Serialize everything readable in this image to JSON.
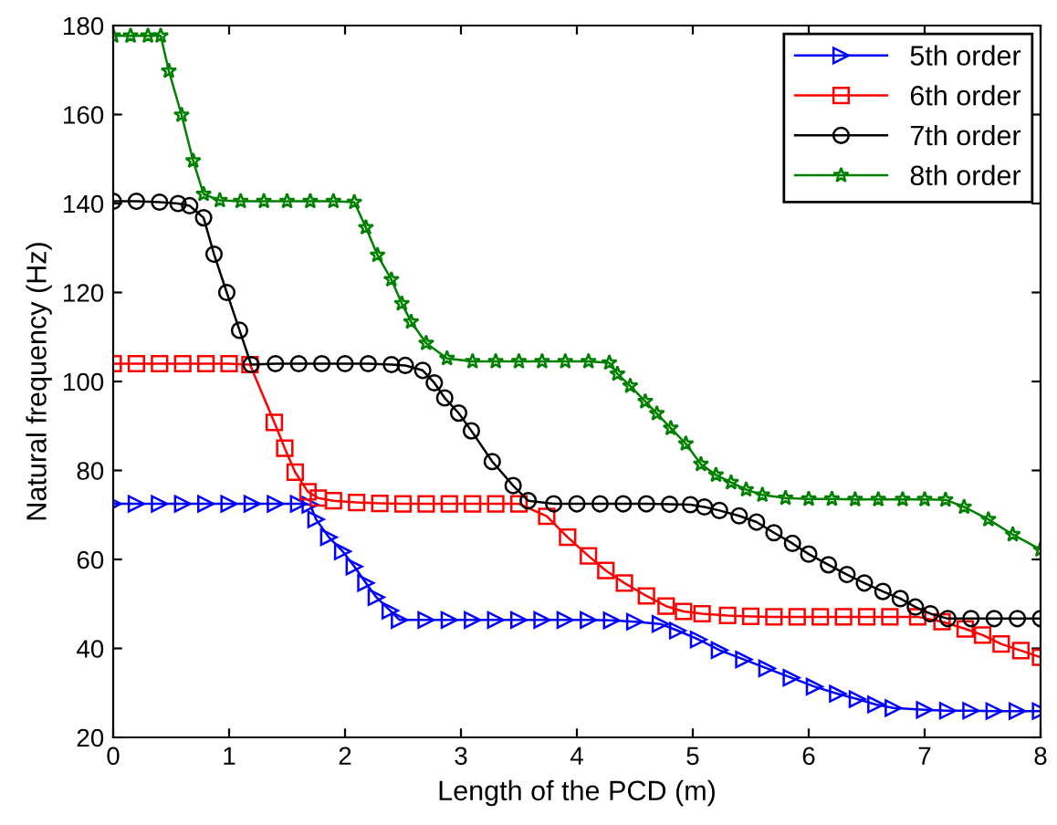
{
  "chart_data": {
    "type": "line",
    "xlabel": "Length of the PCD (m)",
    "ylabel": "Natural frequency (Hz)",
    "xlim": [
      0,
      8
    ],
    "xticks": [
      0,
      1,
      2,
      3,
      4,
      5,
      6,
      7,
      8
    ],
    "ylim": [
      20,
      180
    ],
    "yticks": [
      20,
      40,
      60,
      80,
      100,
      120,
      140,
      160,
      180
    ],
    "grid": false,
    "legend": "top right",
    "line_style": "solid",
    "series": [
      {
        "name": "5th order",
        "color": "#0000ff",
        "marker": "triangle",
        "x": [
          0,
          0.2,
          0.4,
          0.6,
          0.8,
          1.0,
          1.2,
          1.4,
          1.6,
          1.7,
          1.75,
          1.86,
          1.98,
          2.08,
          2.18,
          2.27,
          2.39,
          2.47,
          2.7,
          2.9,
          3.1,
          3.3,
          3.5,
          3.7,
          3.9,
          4.1,
          4.3,
          4.5,
          4.72,
          4.87,
          5.05,
          5.23,
          5.44,
          5.64,
          5.85,
          6.05,
          6.25,
          6.42,
          6.58,
          6.73,
          7.0,
          7.2,
          7.4,
          7.6,
          7.8,
          8.0
        ],
        "values": [
          72.5,
          72.5,
          72.5,
          72.5,
          72.5,
          72.5,
          72.5,
          72.5,
          72.5,
          72.3,
          69,
          65,
          61.8,
          58.4,
          54.7,
          51.5,
          48.5,
          46.4,
          46.4,
          46.4,
          46.4,
          46.4,
          46.4,
          46.4,
          46.4,
          46.4,
          46.3,
          46,
          45.5,
          44,
          42,
          39.6,
          37.5,
          35.5,
          33.4,
          31.4,
          29.8,
          28.6,
          27.4,
          26.6,
          26.2,
          26,
          26,
          25.9,
          25.9,
          25.9
        ]
      },
      {
        "name": "6th order",
        "color": "#ff0000",
        "marker": "square",
        "x": [
          0,
          0.2,
          0.4,
          0.6,
          0.8,
          1.0,
          1.18,
          1.39,
          1.48,
          1.57,
          1.68,
          1.77,
          1.9,
          2.1,
          2.3,
          2.5,
          2.7,
          2.9,
          3.1,
          3.3,
          3.5,
          3.74,
          3.92,
          4.1,
          4.25,
          4.41,
          4.6,
          4.77,
          4.92,
          5.08,
          5.3,
          5.5,
          5.7,
          5.9,
          6.1,
          6.3,
          6.5,
          6.7,
          6.94,
          7.15,
          7.35,
          7.5,
          7.66,
          7.83,
          8.0
        ],
        "values": [
          104,
          104,
          104,
          104,
          104,
          104,
          103.8,
          90.8,
          85,
          79.6,
          75.2,
          73.8,
          73.2,
          72.8,
          72.6,
          72.5,
          72.5,
          72.5,
          72.5,
          72.5,
          72.5,
          69.7,
          65,
          60.8,
          57.5,
          54.7,
          51.8,
          49.5,
          48.3,
          47.8,
          47.4,
          47.2,
          47.1,
          47.1,
          47.1,
          47.1,
          47.1,
          47.1,
          47.1,
          46,
          44.4,
          43,
          41,
          39.5,
          38
        ]
      },
      {
        "name": "7th order",
        "color": "#000000",
        "marker": "circle",
        "x": [
          0,
          0.2,
          0.4,
          0.56,
          0.66,
          0.78,
          0.87,
          0.98,
          1.09,
          1.19,
          1.4,
          1.6,
          1.8,
          2.0,
          2.2,
          2.4,
          2.52,
          2.67,
          2.77,
          2.86,
          2.98,
          3.09,
          3.27,
          3.45,
          3.58,
          3.8,
          4.0,
          4.2,
          4.4,
          4.6,
          4.8,
          4.98,
          5.1,
          5.23,
          5.4,
          5.55,
          5.7,
          5.86,
          6.0,
          6.17,
          6.33,
          6.48,
          6.64,
          6.79,
          6.92,
          7.05,
          7.2,
          7.4,
          7.6,
          7.8,
          8.0
        ],
        "values": [
          140.5,
          140.5,
          140.3,
          140,
          139.5,
          136.8,
          128.6,
          120,
          111.5,
          103.8,
          104,
          104,
          104,
          104,
          104,
          103.8,
          103.6,
          102.5,
          99.7,
          96.3,
          92.9,
          88.9,
          82,
          76.6,
          73.2,
          72.5,
          72.5,
          72.5,
          72.5,
          72.5,
          72.4,
          72.3,
          71.8,
          71,
          69.8,
          68.4,
          66,
          63.6,
          61.2,
          58.8,
          56.6,
          54.7,
          52.8,
          51.2,
          49.3,
          47.8,
          46.7,
          46.7,
          46.7,
          46.7,
          46.7
        ]
      },
      {
        "name": "8th order",
        "color": "#008000",
        "marker": "star",
        "x": [
          0,
          0.15,
          0.3,
          0.41,
          0.48,
          0.59,
          0.69,
          0.78,
          0.92,
          1.1,
          1.3,
          1.5,
          1.7,
          1.9,
          2.08,
          2.18,
          2.28,
          2.4,
          2.49,
          2.57,
          2.7,
          2.88,
          3.1,
          3.3,
          3.5,
          3.7,
          3.9,
          4.1,
          4.28,
          4.35,
          4.46,
          4.59,
          4.69,
          4.81,
          4.94,
          5.07,
          5.2,
          5.33,
          5.46,
          5.6,
          5.8,
          6.0,
          6.2,
          6.4,
          6.6,
          6.81,
          7.0,
          7.18,
          7.34,
          7.55,
          7.76,
          8.0
        ],
        "values": [
          177.7,
          177.7,
          177.7,
          177.7,
          169.8,
          159.9,
          149.6,
          142.1,
          140.7,
          140.5,
          140.5,
          140.5,
          140.5,
          140.5,
          140.3,
          134.6,
          128.4,
          122.9,
          117.5,
          113.4,
          108.6,
          105.2,
          104.5,
          104.5,
          104.5,
          104.5,
          104.5,
          104.5,
          104.2,
          101.7,
          99,
          95.5,
          92.8,
          89.5,
          86,
          81.4,
          79,
          77.3,
          75.7,
          74.5,
          73.8,
          73.6,
          73.6,
          73.5,
          73.5,
          73.5,
          73.5,
          73.4,
          71.8,
          69,
          65.6,
          62.2
        ]
      }
    ]
  }
}
